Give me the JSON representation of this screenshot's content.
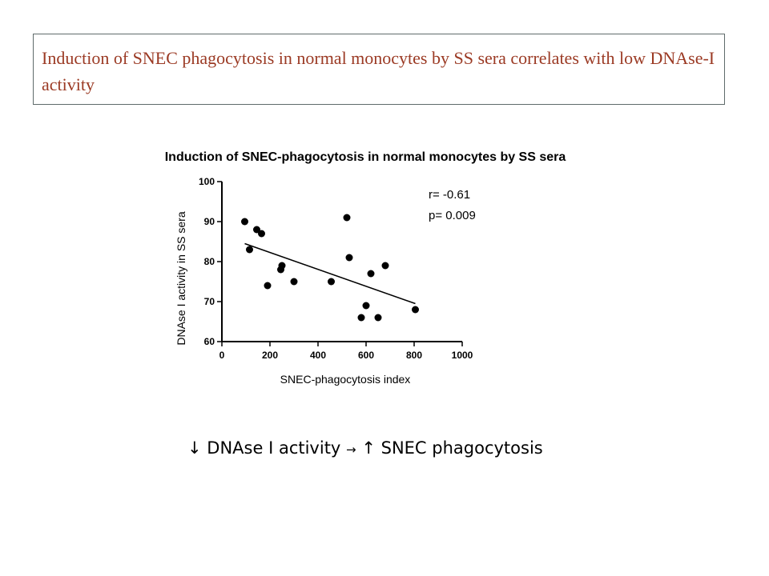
{
  "header": {
    "title": "Induction of SNEC phagocytosis in normal monocytes by SS sera correlates with low DNAse-I activity"
  },
  "chart_data": {
    "type": "scatter",
    "title": "Induction of SNEC-phagocytosis in normal monocytes by SS sera",
    "xlabel": "SNEC-phagocytosis index",
    "ylabel": "DNAse I activity in SS sera",
    "xlim": [
      0,
      1000
    ],
    "ylim": [
      60,
      100
    ],
    "xticks": [
      "0",
      "200",
      "400",
      "600",
      "800",
      "1000"
    ],
    "yticks": [
      "60",
      "70",
      "80",
      "90",
      "100"
    ],
    "points": [
      {
        "x": 95,
        "y": 90
      },
      {
        "x": 115,
        "y": 83
      },
      {
        "x": 145,
        "y": 88
      },
      {
        "x": 165,
        "y": 87
      },
      {
        "x": 190,
        "y": 74
      },
      {
        "x": 245,
        "y": 78
      },
      {
        "x": 250,
        "y": 79
      },
      {
        "x": 300,
        "y": 75
      },
      {
        "x": 455,
        "y": 75
      },
      {
        "x": 520,
        "y": 91
      },
      {
        "x": 530,
        "y": 81
      },
      {
        "x": 580,
        "y": 66
      },
      {
        "x": 600,
        "y": 69
      },
      {
        "x": 620,
        "y": 77
      },
      {
        "x": 650,
        "y": 66
      },
      {
        "x": 680,
        "y": 79
      },
      {
        "x": 805,
        "y": 68
      }
    ],
    "trendline": {
      "x1": 95,
      "y1": 84.5,
      "x2": 805,
      "y2": 69.5
    },
    "annotations": [
      "r= -0.61",
      "p= 0.009"
    ]
  },
  "caption": {
    "down_arrow": "↓",
    "text1": "DNAse I activity",
    "right_arrow": "→",
    "up_arrow": "↑",
    "text2": "SNEC phagocytosis"
  }
}
